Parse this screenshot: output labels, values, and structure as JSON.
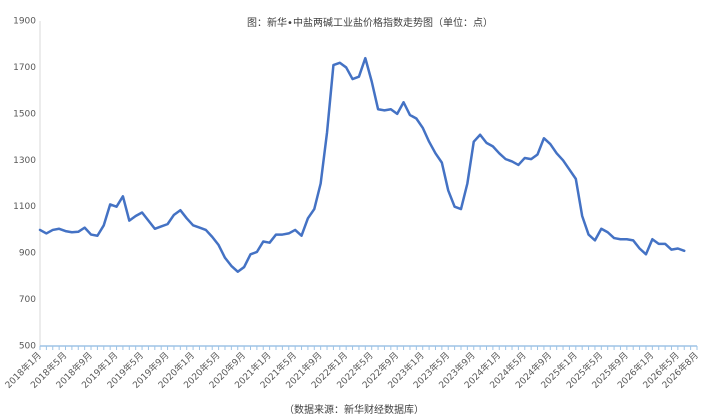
{
  "chart_data": {
    "type": "line",
    "title": "图：新华•中盐两碱工业盐价格指数走势图（单位：点）",
    "source": "（数据来源：新华财经数据库）",
    "categories": [
      "2018年1月",
      null,
      null,
      null,
      "2018年5月",
      null,
      null,
      null,
      "2018年9月",
      null,
      null,
      null,
      "2019年1月",
      null,
      null,
      null,
      "2019年5月",
      null,
      null,
      null,
      "2019年9月",
      null,
      null,
      null,
      "2020年1月",
      null,
      null,
      null,
      "2020年5月",
      null,
      null,
      null,
      "2020年9月",
      null,
      null,
      null,
      "2021年1月",
      null,
      null,
      null,
      "2021年5月",
      null,
      null,
      null,
      "2021年9月",
      null,
      null,
      null,
      "2022年1月",
      null,
      null,
      null,
      "2022年5月",
      null,
      null,
      null,
      "2022年9月",
      null,
      null,
      null,
      "2023年1月",
      null,
      null,
      null,
      "2023年5月",
      null,
      null,
      null,
      "2023年9月",
      null,
      null,
      null,
      "2024年1月",
      null,
      null,
      null,
      "2024年5月",
      null,
      null,
      null,
      "2024年9月",
      null,
      null,
      null,
      "2025年1月",
      null,
      null,
      null,
      "2025年5月",
      null,
      null,
      null,
      "2025年9月",
      null,
      null,
      null,
      "2026年1月",
      null,
      null,
      null,
      "2026年5月",
      null,
      null,
      "2026年8月"
    ],
    "values": [
      1000,
      985,
      1000,
      1005,
      995,
      990,
      992,
      1010,
      980,
      975,
      1020,
      1110,
      1100,
      1145,
      1040,
      1060,
      1075,
      1040,
      1005,
      1015,
      1025,
      1065,
      1085,
      1050,
      1020,
      1010,
      1000,
      970,
      935,
      880,
      845,
      820,
      840,
      895,
      905,
      950,
      945,
      980,
      980,
      985,
      1000,
      975,
      1050,
      1090,
      1200,
      1420,
      1710,
      1720,
      1700,
      1650,
      1660,
      1740,
      1640,
      1520,
      1515,
      1520,
      1500,
      1550,
      1495,
      1480,
      1440,
      1380,
      1330,
      1290,
      1170,
      1100,
      1090,
      1200,
      1380,
      1410,
      1375,
      1360,
      1330,
      1305,
      1295,
      1280,
      1310,
      1305,
      1325,
      1395,
      1370,
      1330,
      1300,
      1260,
      1220,
      1060,
      980,
      955,
      1005,
      990,
      965,
      960,
      960,
      955,
      920,
      895,
      960,
      940,
      940,
      915,
      920,
      910,
      null,
      null
    ],
    "color": "#4472c4",
    "ylim": [
      500,
      1900
    ],
    "yticks": [
      500,
      700,
      900,
      1100,
      1300,
      1500,
      1700,
      1900
    ],
    "grid": false
  }
}
